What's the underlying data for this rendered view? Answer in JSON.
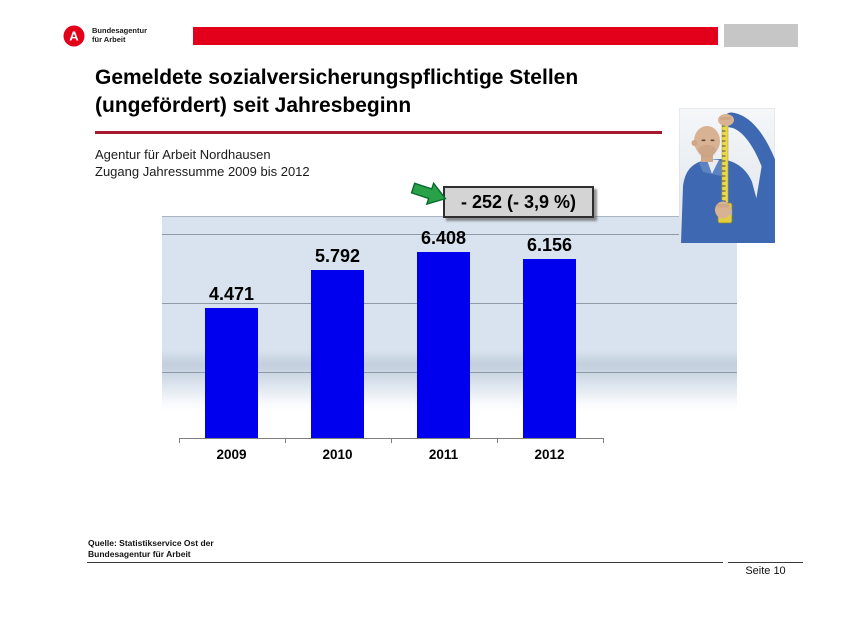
{
  "header": {
    "logo": {
      "line1": "Bundesagentur",
      "line2": "für Arbeit",
      "brand_red": "#e2001a"
    }
  },
  "title": {
    "line1": "Gemeldete sozialversicherungspflichtige Stellen",
    "line2": "(ungefördert) seit Jahresbeginn",
    "underline_color": "#a5182e"
  },
  "subtitle": {
    "line1": "Agentur für Arbeit Nordhausen",
    "line2": "Zugang Jahressumme 2009 bis 2012"
  },
  "annotation": {
    "label": "- 252 (- 3,9 %)",
    "arrow_color": "#29a148"
  },
  "chart_data": {
    "type": "bar",
    "categories": [
      "2009",
      "2010",
      "2011",
      "2012"
    ],
    "values": [
      4471,
      5792,
      6408,
      6156
    ],
    "value_labels": [
      "4.471",
      "5.792",
      "6.408",
      "6.156"
    ],
    "title": "",
    "xlabel": "",
    "ylabel": "",
    "ylim": [
      0,
      7500
    ],
    "gridlines": [
      2500,
      5000,
      7500
    ],
    "grid": true,
    "legend": "none",
    "bar_color": "#0000ee",
    "plot_background": "#d9e3ef",
    "annotation": "- 252 (- 3,9 %)"
  },
  "footer": {
    "source_line1": "Quelle: Statistikservice Ost der",
    "source_line2": "Bundesagentur für Arbeit",
    "page_label": "Seite 10"
  }
}
